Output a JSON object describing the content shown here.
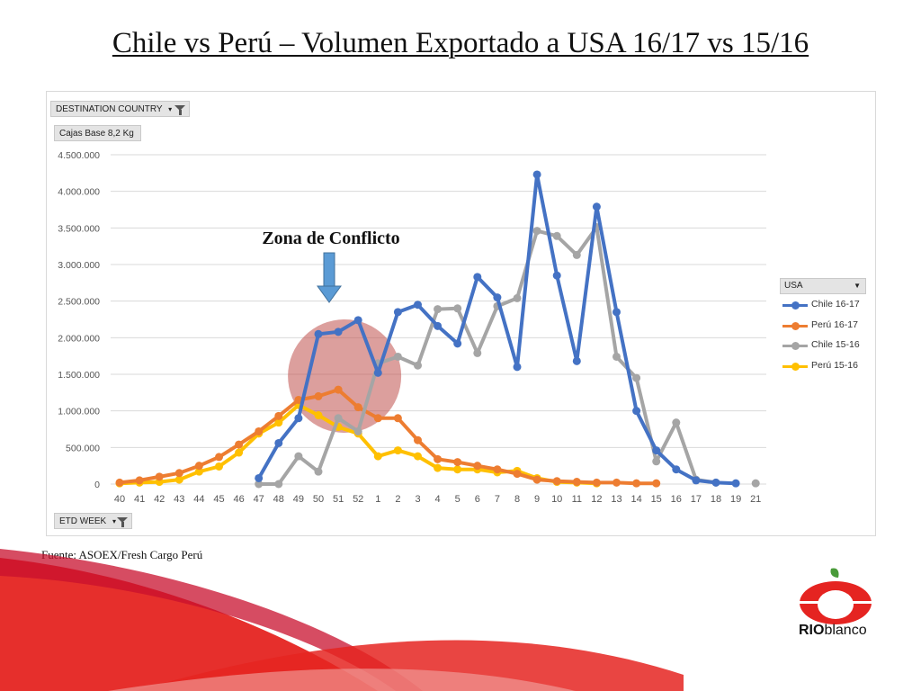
{
  "slide": {
    "title": "Chile vs Perú – Volumen Exportado a USA 16/17 vs 15/16",
    "source": "Fuente: ASOEX/Fresh Cargo Perú",
    "logo_bold": "RIO",
    "logo_light": "blanco"
  },
  "pivot": {
    "filter_field": "DESTINATION COUNTRY",
    "value_field": "Cajas Base 8,2 Kg",
    "axis_field": "ETD WEEK",
    "legend_field": "USA"
  },
  "annotation": {
    "text": "Zona de Conflicto",
    "region_weeks": [
      "50",
      "52"
    ],
    "region_center_value": 1500000
  },
  "colors": {
    "chile_1617": "#4472c4",
    "peru_1617": "#ed7d31",
    "chile_1516": "#a5a5a5",
    "peru_1516": "#ffc000",
    "grid": "#d9d9d9",
    "arrow": "#5b9bd5",
    "conflict_zone": "#c0504d",
    "brand_red": "#e52421",
    "brand_green": "#4a9b3a"
  },
  "chart_data": {
    "type": "line",
    "title": "",
    "xlabel": "ETD WEEK",
    "ylabel": "Cajas Base 8,2 Kg",
    "ylim": [
      0,
      4500000
    ],
    "yticks": [
      0,
      500000,
      1000000,
      1500000,
      2000000,
      2500000,
      3000000,
      3500000,
      4000000,
      4500000
    ],
    "ytick_labels": [
      "0",
      "500.000",
      "1.000.000",
      "1.500.000",
      "2.000.000",
      "2.500.000",
      "3.000.000",
      "3.500.000",
      "4.000.000",
      "4.500.000"
    ],
    "categories": [
      "40",
      "41",
      "42",
      "43",
      "44",
      "45",
      "46",
      "47",
      "48",
      "49",
      "50",
      "51",
      "52",
      "1",
      "2",
      "3",
      "4",
      "5",
      "6",
      "7",
      "8",
      "9",
      "10",
      "11",
      "12",
      "13",
      "14",
      "15",
      "16",
      "17",
      "18",
      "19",
      "21"
    ],
    "legend_position": "right",
    "grid": true,
    "series": [
      {
        "name": "Chile 16-17",
        "color_key": "chile_1617",
        "values": [
          null,
          null,
          null,
          null,
          null,
          null,
          null,
          80000,
          560000,
          900000,
          2050000,
          2080000,
          2240000,
          1520000,
          2350000,
          2450000,
          2160000,
          1920000,
          2830000,
          2550000,
          1600000,
          4230000,
          2850000,
          1680000,
          3790000,
          2350000,
          1000000,
          460000,
          200000,
          50000,
          20000,
          10000,
          null
        ]
      },
      {
        "name": "Perú 16-17",
        "color_key": "peru_1617",
        "values": [
          20000,
          50000,
          100000,
          150000,
          250000,
          370000,
          540000,
          720000,
          930000,
          1150000,
          1200000,
          1290000,
          1050000,
          900000,
          900000,
          600000,
          340000,
          300000,
          250000,
          200000,
          140000,
          60000,
          40000,
          30000,
          20000,
          20000,
          10000,
          10000,
          null,
          null,
          null,
          null,
          null
        ]
      },
      {
        "name": "Chile 15-16",
        "color_key": "chile_1516",
        "values": [
          null,
          null,
          null,
          null,
          null,
          null,
          null,
          0,
          0,
          380000,
          170000,
          900000,
          720000,
          1650000,
          1740000,
          1620000,
          2390000,
          2400000,
          1790000,
          2430000,
          2540000,
          3460000,
          3390000,
          3130000,
          3510000,
          1740000,
          1450000,
          310000,
          840000,
          60000,
          20000,
          null,
          10000
        ]
      },
      {
        "name": "Perú 15-16",
        "color_key": "peru_1516",
        "values": [
          10000,
          20000,
          30000,
          60000,
          170000,
          240000,
          430000,
          690000,
          840000,
          1080000,
          940000,
          780000,
          690000,
          380000,
          460000,
          380000,
          220000,
          200000,
          200000,
          160000,
          180000,
          80000,
          30000,
          20000,
          10000,
          null,
          null,
          null,
          null,
          null,
          null,
          null,
          null
        ]
      }
    ]
  }
}
